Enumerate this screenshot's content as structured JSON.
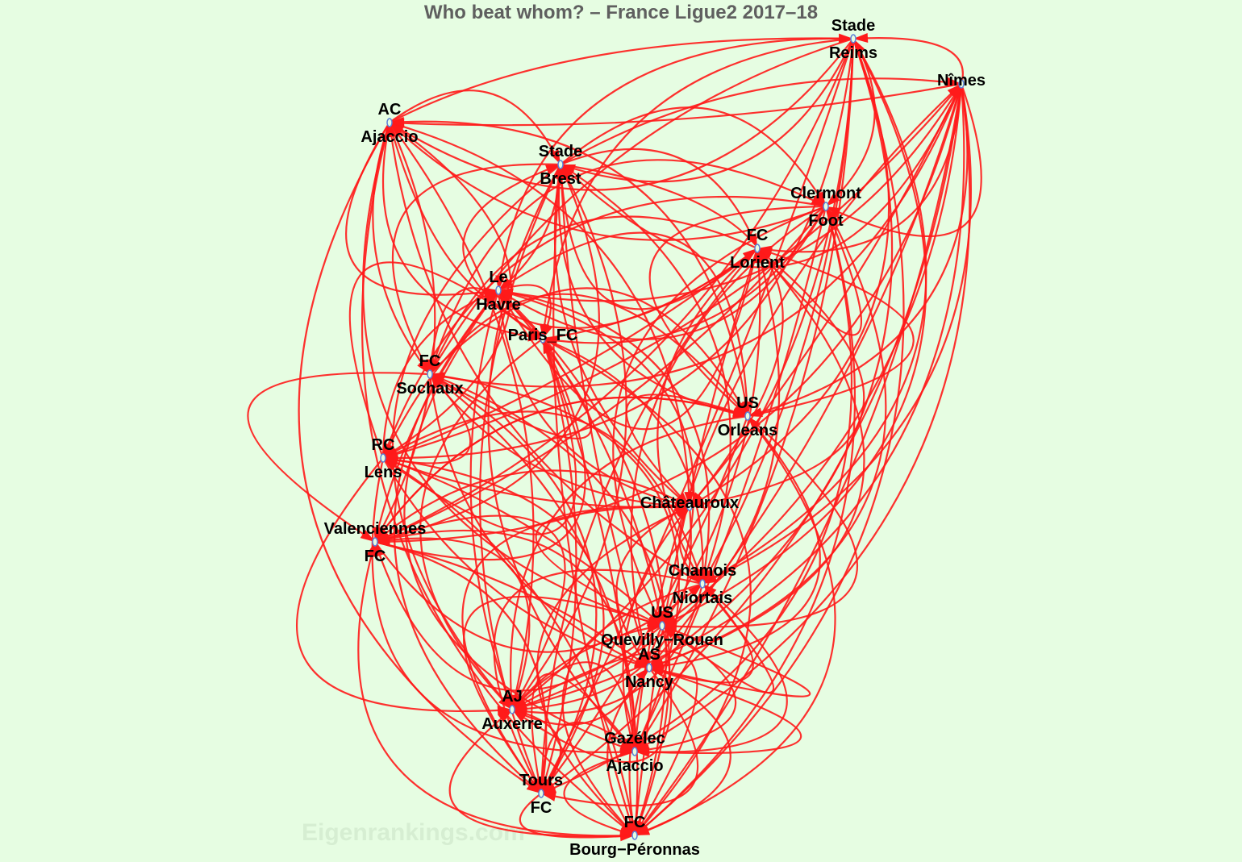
{
  "title": "Who beat whom? – France Ligue2 2017–18",
  "watermark": "Eigenrankings.com",
  "colors": {
    "background": "#e6fde2",
    "edge": "#ff1a1a",
    "node_stroke": "#5b7fd6",
    "title": "#5f5f5f"
  },
  "nodes": [
    {
      "top": "Stade",
      "bottom": "Reims"
    },
    {
      "top": "Nîmes",
      "bottom": ""
    },
    {
      "top": "AC",
      "bottom": "Ajaccio"
    },
    {
      "top": "Stade",
      "bottom": "Brest"
    },
    {
      "top": "Clermont",
      "bottom": "Foot"
    },
    {
      "top": "FC",
      "bottom": "Lorient"
    },
    {
      "top": "Le",
      "bottom": "Havre"
    },
    {
      "top": "Paris_FC",
      "bottom": ""
    },
    {
      "top": "FC",
      "bottom": "Sochaux"
    },
    {
      "top": "US",
      "bottom": "Orleans"
    },
    {
      "top": "RC",
      "bottom": "Lens"
    },
    {
      "top": "Châteauroux",
      "bottom": ""
    },
    {
      "top": "Valenciennes",
      "bottom": "FC"
    },
    {
      "top": "Chamois",
      "bottom": "Niortais"
    },
    {
      "top": "US",
      "bottom": "Quevilly−Rouen"
    },
    {
      "top": "AS",
      "bottom": "Nancy"
    },
    {
      "top": "AJ",
      "bottom": "Auxerre"
    },
    {
      "top": "Gazélec",
      "bottom": "Ajaccio"
    },
    {
      "top": "Tours",
      "bottom": "FC"
    },
    {
      "top": "FC",
      "bottom": "Bourg−Péronnas"
    }
  ],
  "beats": [
    [
      2,
      3,
      4,
      6,
      7,
      8,
      10,
      11,
      12,
      13,
      14,
      15,
      16,
      17,
      18,
      19
    ],
    [
      0,
      2,
      3,
      4,
      5,
      8,
      9,
      10,
      11,
      12,
      13,
      14,
      15,
      16,
      17,
      18,
      19
    ],
    [
      0,
      3,
      5,
      6,
      7,
      8,
      10,
      11,
      12,
      14,
      16,
      18,
      19
    ],
    [
      1,
      4,
      5,
      6,
      8,
      9,
      11,
      12,
      13,
      15,
      16,
      17,
      18,
      19
    ],
    [
      2,
      5,
      6,
      7,
      9,
      10,
      12,
      14,
      15,
      17,
      18,
      19
    ],
    [
      3,
      6,
      8,
      10,
      11,
      13,
      15,
      16,
      18,
      19
    ],
    [
      1,
      7,
      8,
      9,
      11,
      12,
      14,
      16,
      17,
      19
    ],
    [
      3,
      5,
      8,
      10,
      13,
      14,
      16,
      18,
      19
    ],
    [
      4,
      9,
      10,
      12,
      15,
      17,
      18,
      19
    ],
    [
      2,
      5,
      10,
      11,
      12,
      14,
      16,
      18,
      19
    ],
    [
      6,
      7,
      11,
      13,
      15,
      16,
      17,
      19
    ],
    [
      3,
      8,
      12,
      13,
      14,
      16,
      18,
      19
    ],
    [
      7,
      9,
      13,
      15,
      16,
      17,
      18
    ],
    [
      0,
      2,
      6,
      14,
      15,
      16,
      18,
      19
    ],
    [
      5,
      10,
      12,
      15,
      16,
      17,
      19
    ],
    [
      4,
      9,
      11,
      16,
      17,
      18,
      19
    ],
    [
      3,
      12,
      14,
      17,
      18,
      19
    ],
    [
      1,
      7,
      11,
      13,
      18,
      19
    ],
    [
      6,
      10,
      14,
      17,
      19
    ],
    [
      8,
      12,
      15,
      16
    ]
  ]
}
